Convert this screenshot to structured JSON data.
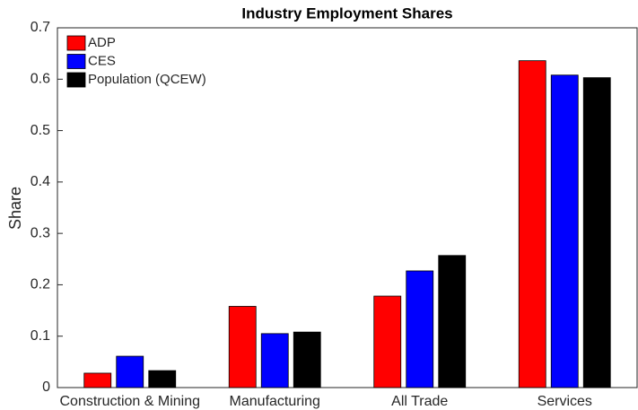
{
  "chart_data": {
    "type": "bar",
    "title": "Industry Employment Shares",
    "y_label": "Share",
    "categories": [
      "Construction & Mining",
      "Manufacturing",
      "All Trade",
      "Services"
    ],
    "series": [
      {
        "name": "ADP",
        "color": "#ff0000",
        "values": [
          0.028,
          0.158,
          0.178,
          0.636
        ]
      },
      {
        "name": "CES",
        "color": "#0000ff",
        "values": [
          0.061,
          0.105,
          0.227,
          0.608
        ]
      },
      {
        "name": "Population (QCEW)",
        "color": "#000000",
        "values": [
          0.033,
          0.108,
          0.257,
          0.603
        ]
      }
    ],
    "ylim": [
      0,
      0.7
    ],
    "yticks": [
      0,
      0.1,
      0.2,
      0.3,
      0.4,
      0.5,
      0.6,
      0.7
    ],
    "grid": false,
    "legend": "upper-left"
  }
}
